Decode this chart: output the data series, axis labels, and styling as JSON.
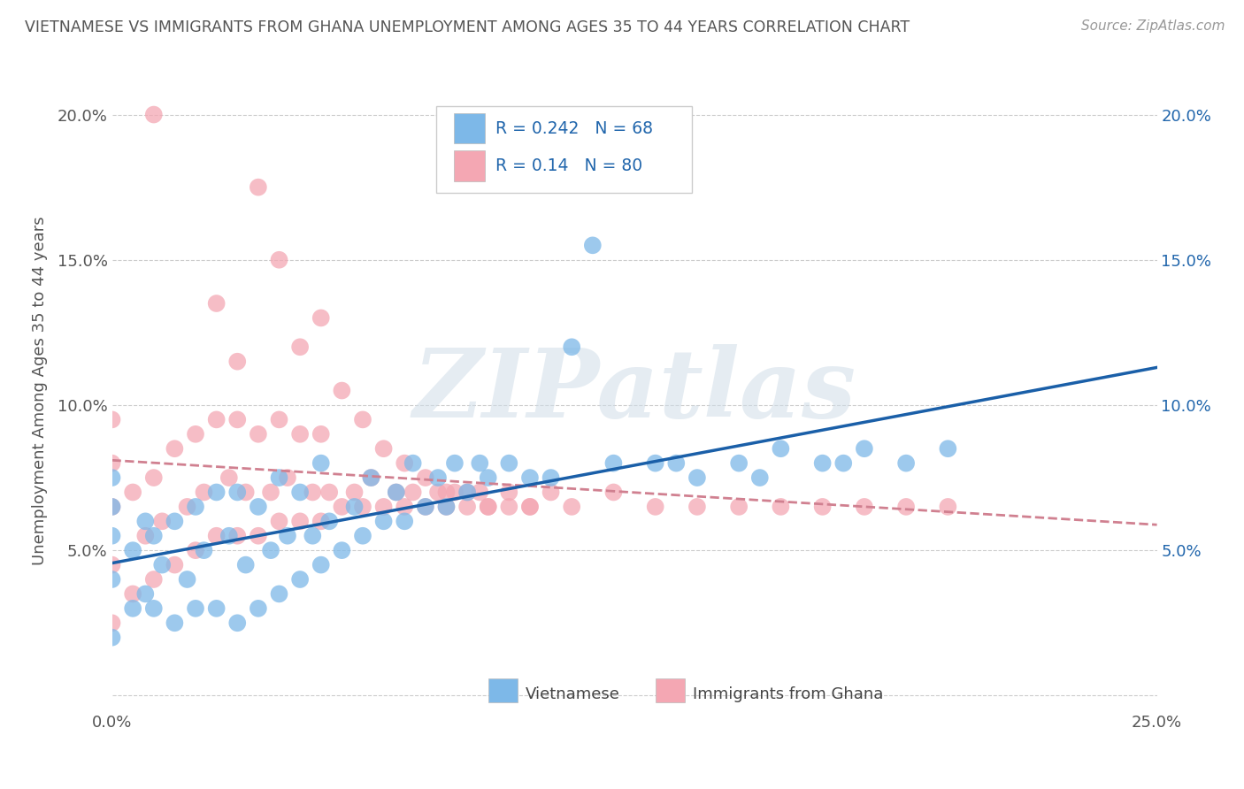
{
  "title": "VIETNAMESE VS IMMIGRANTS FROM GHANA UNEMPLOYMENT AMONG AGES 35 TO 44 YEARS CORRELATION CHART",
  "source": "Source: ZipAtlas.com",
  "ylabel": "Unemployment Among Ages 35 to 44 years",
  "xlim": [
    0.0,
    0.25
  ],
  "ylim": [
    -0.005,
    0.215
  ],
  "vietnamese_color": "#7db8e8",
  "ghana_color": "#f4a7b3",
  "trend_vietnamese_color": "#1a5fa8",
  "trend_ghana_color": "#e05070",
  "trend_ghana_dash_color": "#d8a0b0",
  "R_vietnamese": 0.242,
  "N_vietnamese": 68,
  "R_ghana": 0.14,
  "N_ghana": 80,
  "legend_label_vietnamese": "Vietnamese",
  "legend_label_ghana": "Immigrants from Ghana",
  "watermark": "ZIPatlas",
  "background_color": "#ffffff",
  "grid_color": "#cccccc",
  "title_color": "#555555",
  "label_color": "#2166ac",
  "tick_color": "#555555",
  "right_tick_color": "#2166ac"
}
